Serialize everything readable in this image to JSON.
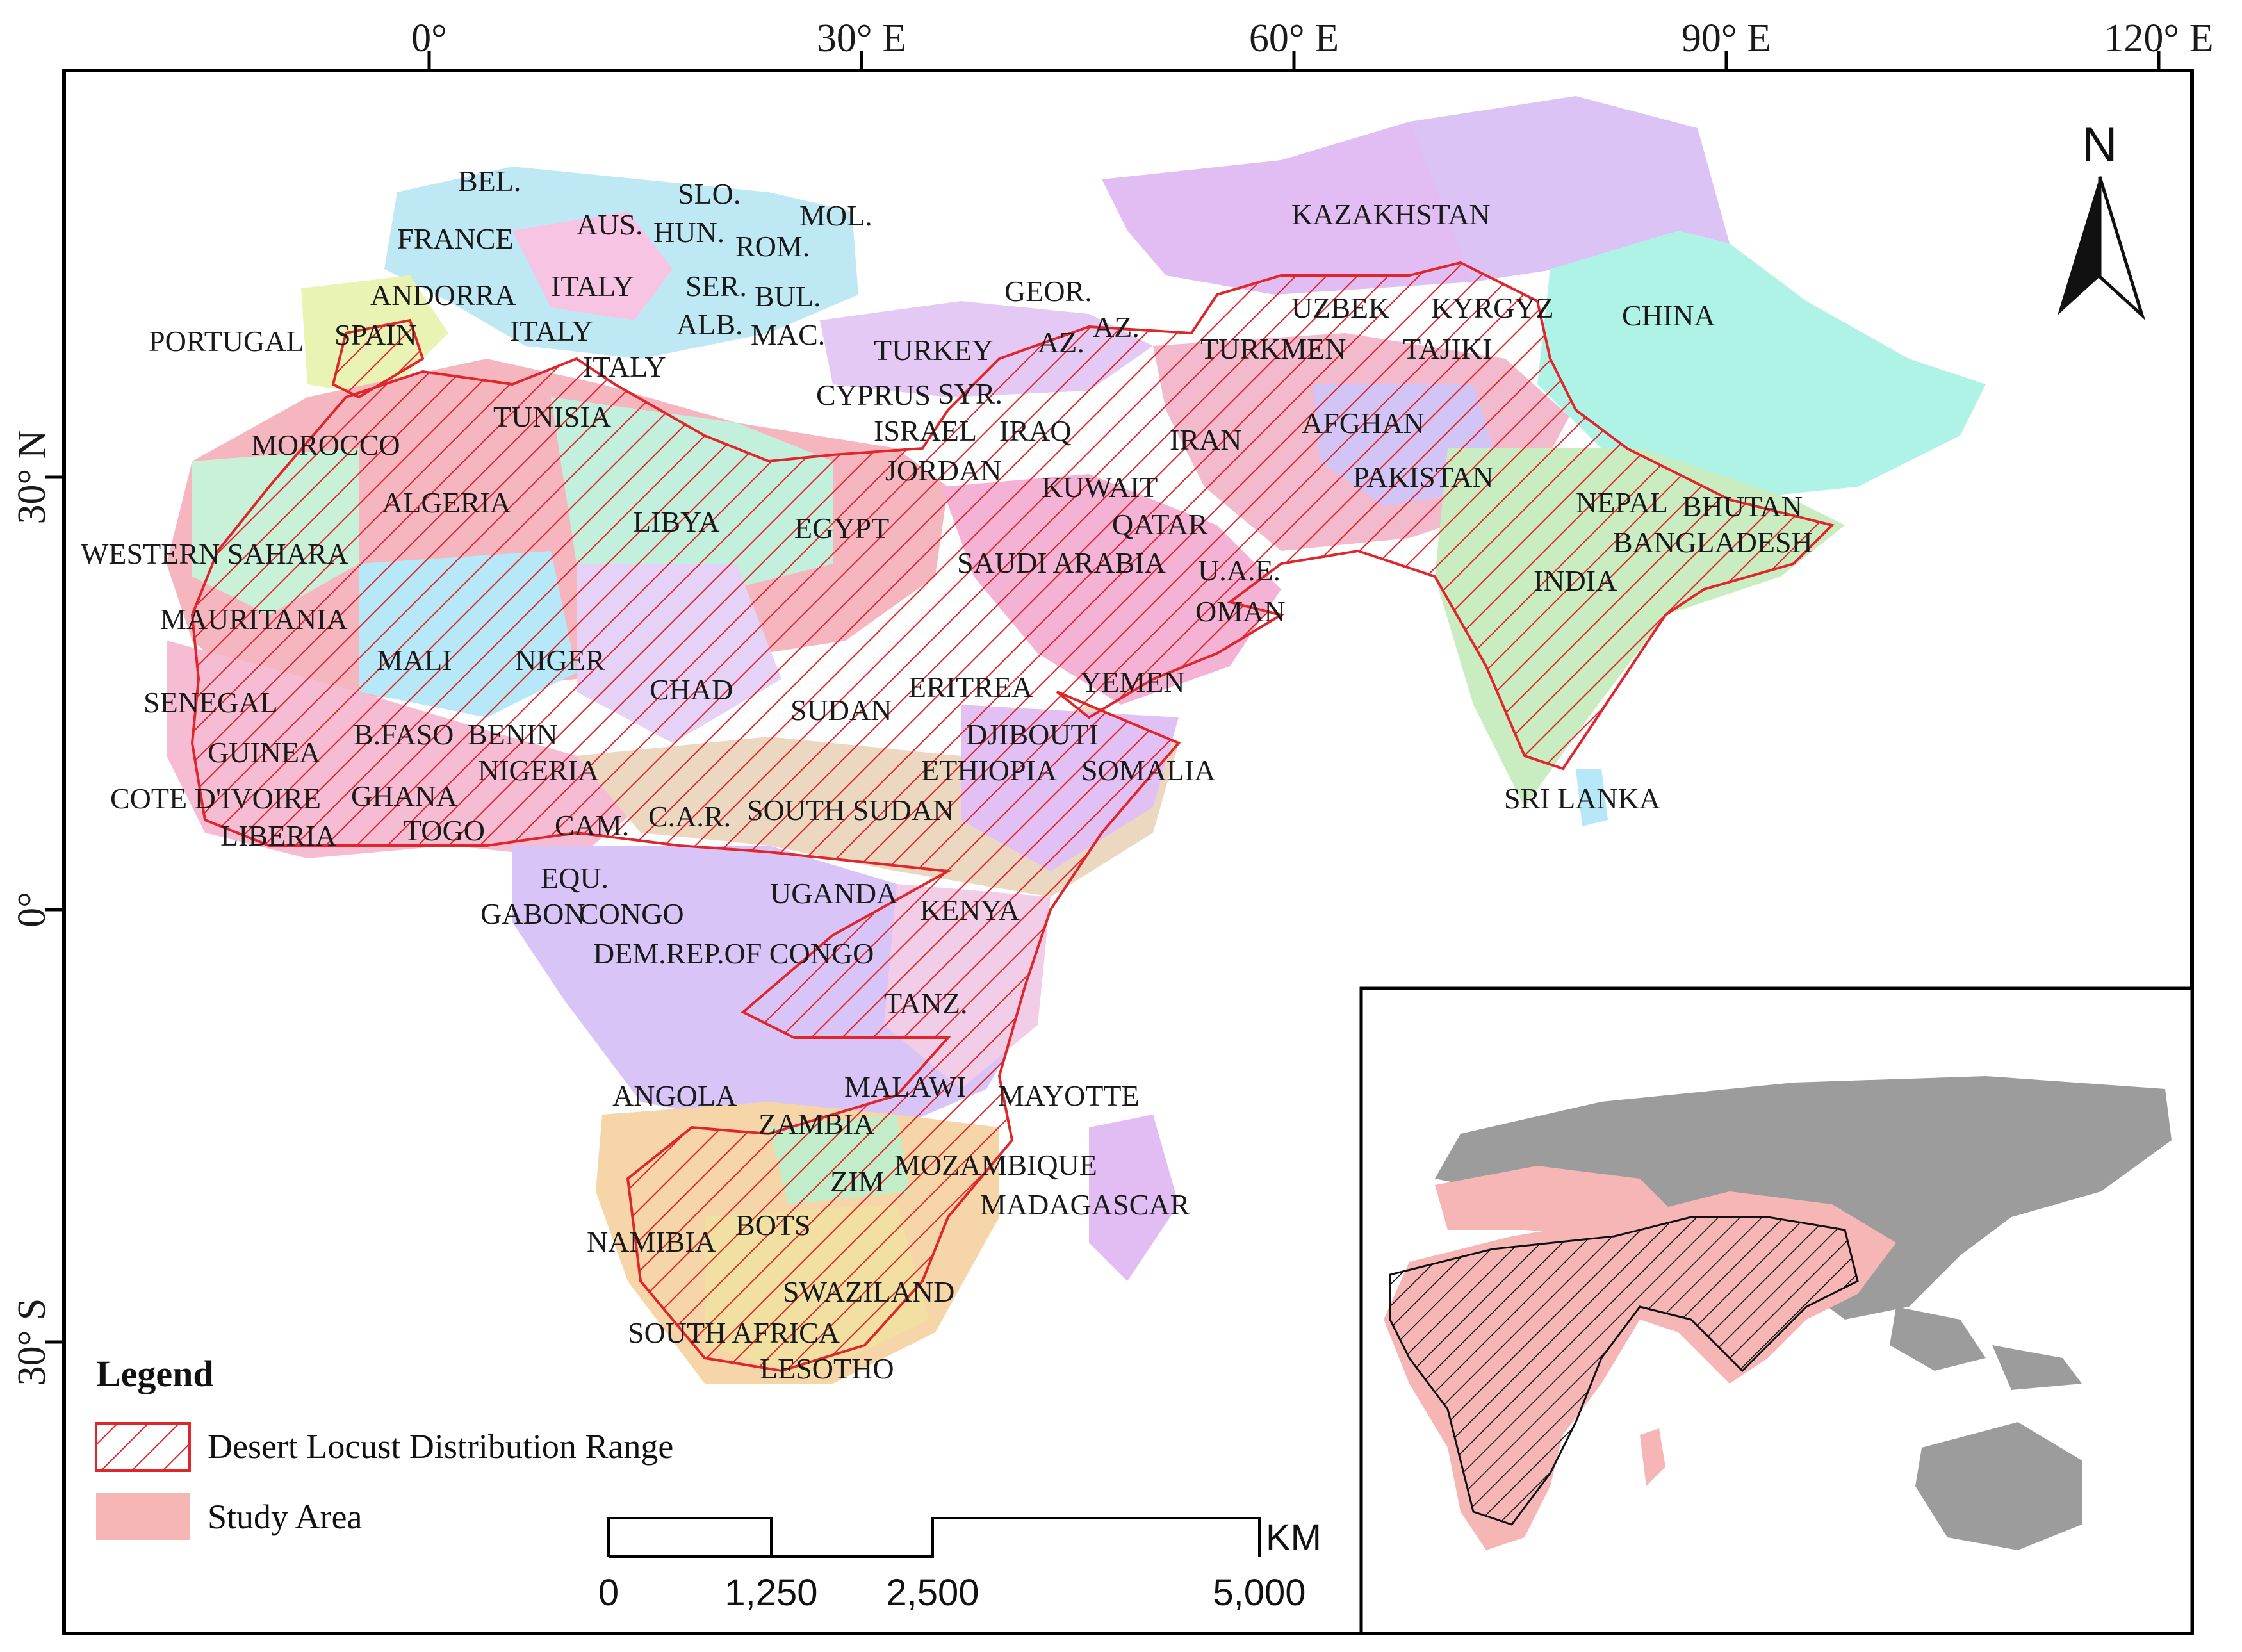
{
  "axes": {
    "top": [
      "0°",
      "30° E",
      "60° E",
      "90° E",
      "120° E"
    ],
    "left": [
      "30° N",
      "0°",
      "30° S"
    ]
  },
  "north_arrow": {
    "label": "N",
    "icon": "north-arrow-icon"
  },
  "legend": {
    "title": "Legend",
    "items": [
      {
        "label": "Desert Locust Distribution Range",
        "swatch": "hatched",
        "color": "#e0262b"
      },
      {
        "label": "Study Area",
        "swatch": "solid",
        "color": "#f7b6b6"
      }
    ]
  },
  "scale_bar": {
    "unit": "KM",
    "ticks": [
      "0",
      "1,250",
      "2,500",
      "5,000"
    ]
  },
  "countries": [
    "BEL.",
    "FRANCE",
    "AUS.",
    "SLO.",
    "HUN.",
    "MOL.",
    "ROM.",
    "ANDORRA",
    "ITALY",
    "SER.",
    "BUL.",
    "PORTUGAL",
    "SPAIN",
    "ITALY",
    "ALB.",
    "MAC.",
    "ITALY",
    "TUNISIA",
    "MOROCCO",
    "ALGERIA",
    "LIBYA",
    "EGYPT",
    "WESTERN SAHARA",
    "MAURITANIA",
    "MALI",
    "NIGER",
    "CHAD",
    "SUDAN",
    "SENEGAL",
    "GUINEA",
    "B.FASO",
    "BENIN",
    "NIGERIA",
    "COTE D'IVOIRE",
    "GHANA",
    "LIBERIA",
    "TOGO",
    "CAM.",
    "C.A.R.",
    "SOUTH SUDAN",
    "EQU.",
    "GABON",
    "CONGO",
    "UGANDA",
    "KENYA",
    "DEM.REP.OF CONGO",
    "TANZ.",
    "ANGOLA",
    "MALAWI",
    "ZAMBIA",
    "ZIM",
    "MOZAMBIQUE",
    "NAMIBIA",
    "BOTS",
    "SWAZILAND",
    "SOUTH AFRICA",
    "LESOTHO",
    "MAYOTTE",
    "MADAGASCAR",
    "GEOR.",
    "AZ.",
    "AZ.",
    "TURKEY",
    "CYPRUS",
    "SYR.",
    "ISRAEL",
    "IRAQ",
    "JORDAN",
    "IRAN",
    "KUWAIT",
    "QATAR",
    "SAUDI ARABIA",
    "U.A.E.",
    "OMAN",
    "ERITREA",
    "YEMEN",
    "DJIBOUTI",
    "ETHIOPIA",
    "SOMALIA",
    "KAZAKHSTAN",
    "UZBEK",
    "KYRGYZ",
    "TURKMEN",
    "TAJIKI",
    "CHINA",
    "AFGHAN",
    "PAKISTAN",
    "NEPAL",
    "BHUTAN",
    "BANGLADESH",
    "INDIA",
    "SRI LANKA"
  ]
}
